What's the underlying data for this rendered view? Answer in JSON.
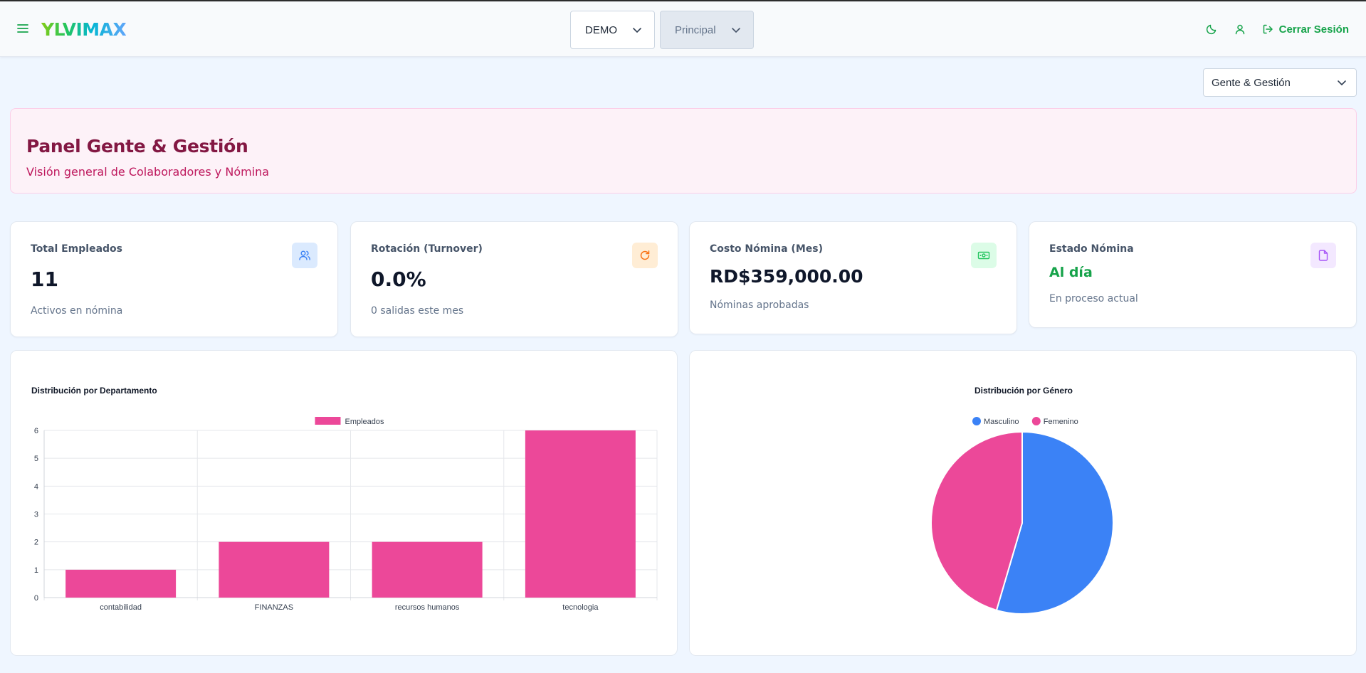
{
  "header": {
    "logo": "YLVIMAX",
    "company_select": "DEMO",
    "module_select": "Principal",
    "logout_label": "Cerrar Sesión"
  },
  "area_select": "Gente & Gestión",
  "hero": {
    "title": "Panel Gente & Gestión",
    "subtitle": "Visión general de Colaboradores y Nómina"
  },
  "kpis": [
    {
      "title": "Total Empleados",
      "value": "11",
      "note": "Activos en nómina",
      "icon": "users-icon",
      "color": "#3b82f6",
      "bg": "#dbeafe"
    },
    {
      "title": "Rotación (Turnover)",
      "value": "0.0%",
      "note": "0 salidas este mes",
      "icon": "refresh-icon",
      "color": "#f97316",
      "bg": "#ffedd5"
    },
    {
      "title": "Costo Nómina (Mes)",
      "value": "RD$359,000.00",
      "note": "Nóminas aprobadas",
      "icon": "banknote-icon",
      "color": "#22c55e",
      "bg": "#dcfce7"
    },
    {
      "title": "Estado Nómina",
      "value": "Al día",
      "note": "En proceso actual",
      "icon": "file-icon",
      "color": "#a855f7",
      "bg": "#f3e8ff"
    }
  ],
  "chart_data": [
    {
      "type": "bar",
      "title": "Distribución por Departamento",
      "categories": [
        "contabilidad",
        "FINANZAS",
        "recursos humanos",
        "tecnologia"
      ],
      "series": [
        {
          "name": "Empleados",
          "values": [
            1,
            2,
            2,
            6
          ]
        }
      ],
      "ylim": [
        0,
        6
      ],
      "yticks": [
        0,
        1,
        2,
        3,
        4,
        5,
        6
      ],
      "grid": true,
      "legend": "top",
      "color": "#ec4899"
    },
    {
      "type": "pie",
      "title": "Distribución por Género",
      "labels": [
        "Masculino",
        "Femenino"
      ],
      "values": [
        6,
        5
      ],
      "colors": [
        "#3b82f6",
        "#ec4899"
      ],
      "legend": "top"
    }
  ]
}
